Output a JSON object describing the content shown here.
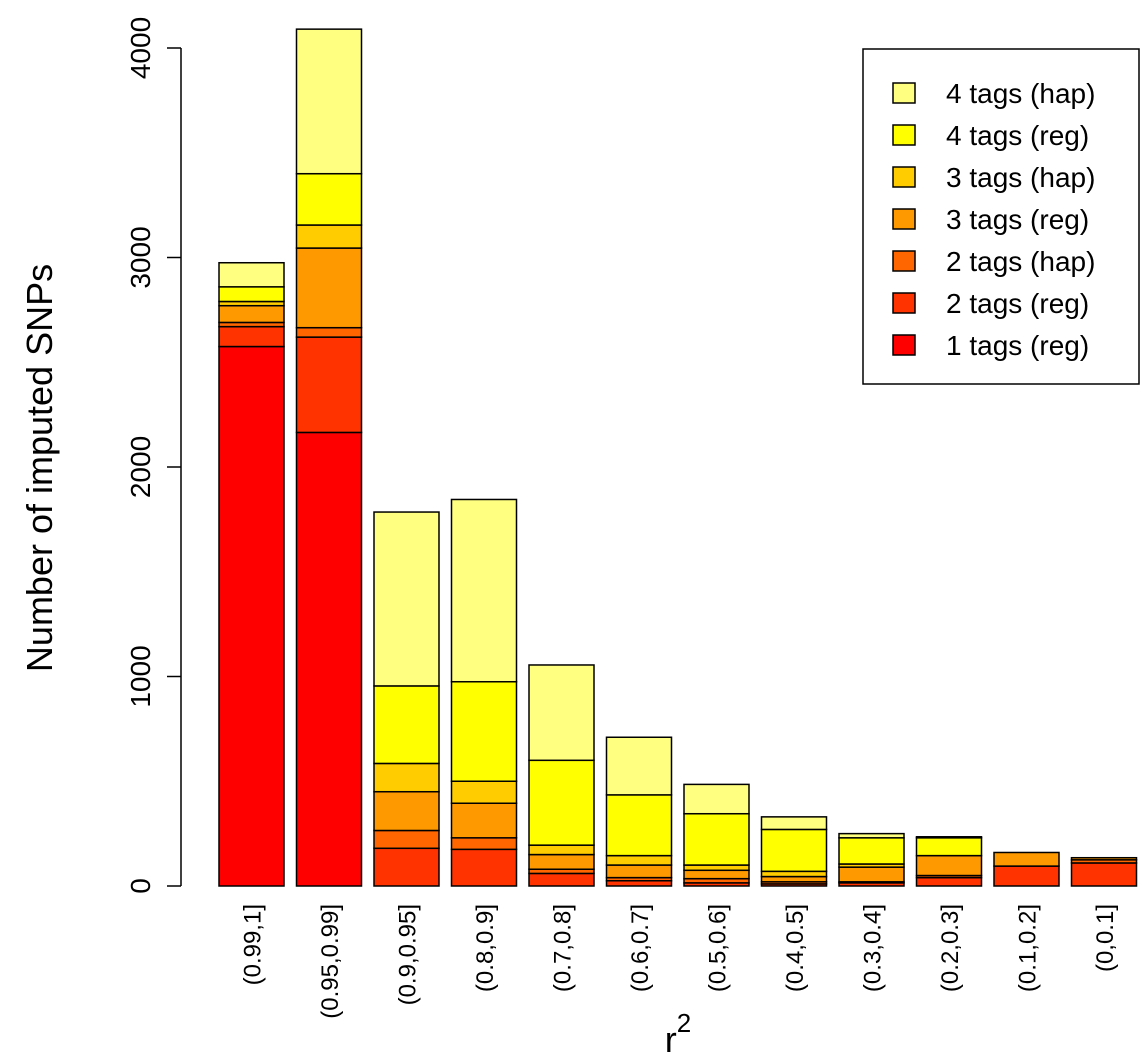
{
  "chart_data": {
    "type": "bar",
    "stacked": true,
    "ylabel": "Number of imputed SNPs",
    "xlabel_base": "r",
    "xlabel_sup": "2",
    "ylim": [
      0,
      4100
    ],
    "yticks": [
      "0",
      "1000",
      "2000",
      "3000",
      "4000"
    ],
    "ytick_values": [
      0,
      1000,
      2000,
      3000,
      4000
    ],
    "categories": [
      "(0.99,1]",
      "(0.95,0.99]",
      "(0.9,0.95]",
      "(0.8,0.9]",
      "(0.7,0.8]",
      "(0.6,0.7]",
      "(0.5,0.6]",
      "(0.4,0.5]",
      "(0.3,0.4]",
      "(0.2,0.3]",
      "(0.1,0.2]",
      "(0,0.1]"
    ],
    "series": [
      {
        "name": "1 tags (reg)",
        "color": "#FF0000",
        "values": [
          2575,
          2165,
          0,
          0,
          0,
          0,
          0,
          0,
          0,
          0,
          0,
          0
        ]
      },
      {
        "name": "2 tags (reg)",
        "color": "#FF3300",
        "values": [
          95,
          455,
          180,
          175,
          60,
          25,
          15,
          10,
          15,
          40,
          95,
          110
        ]
      },
      {
        "name": "2 tags (hap)",
        "color": "#FF6600",
        "values": [
          20,
          45,
          85,
          55,
          20,
          15,
          20,
          10,
          5,
          10,
          0,
          15
        ]
      },
      {
        "name": "3 tags (reg)",
        "color": "#FF9900",
        "values": [
          80,
          380,
          185,
          165,
          70,
          60,
          40,
          25,
          70,
          95,
          65,
          10
        ]
      },
      {
        "name": "3 tags (hap)",
        "color": "#FFCC00",
        "values": [
          20,
          110,
          135,
          105,
          45,
          45,
          25,
          25,
          15,
          0,
          0,
          0
        ]
      },
      {
        "name": "4 tags (reg)",
        "color": "#FFFF00",
        "values": [
          70,
          245,
          370,
          475,
          405,
          290,
          245,
          200,
          125,
          85,
          0,
          0
        ]
      },
      {
        "name": "4 tags (hap)",
        "color": "#FFFF80",
        "values": [
          115,
          690,
          830,
          870,
          455,
          275,
          140,
          60,
          20,
          5,
          0,
          0
        ]
      }
    ],
    "legend_order": [
      "4 tags (hap)",
      "4 tags (reg)",
      "3 tags (hap)",
      "3 tags (reg)",
      "2 tags (hap)",
      "2 tags (reg)",
      "1 tags (reg)"
    ],
    "legend_position": "top-right",
    "grid": false
  }
}
